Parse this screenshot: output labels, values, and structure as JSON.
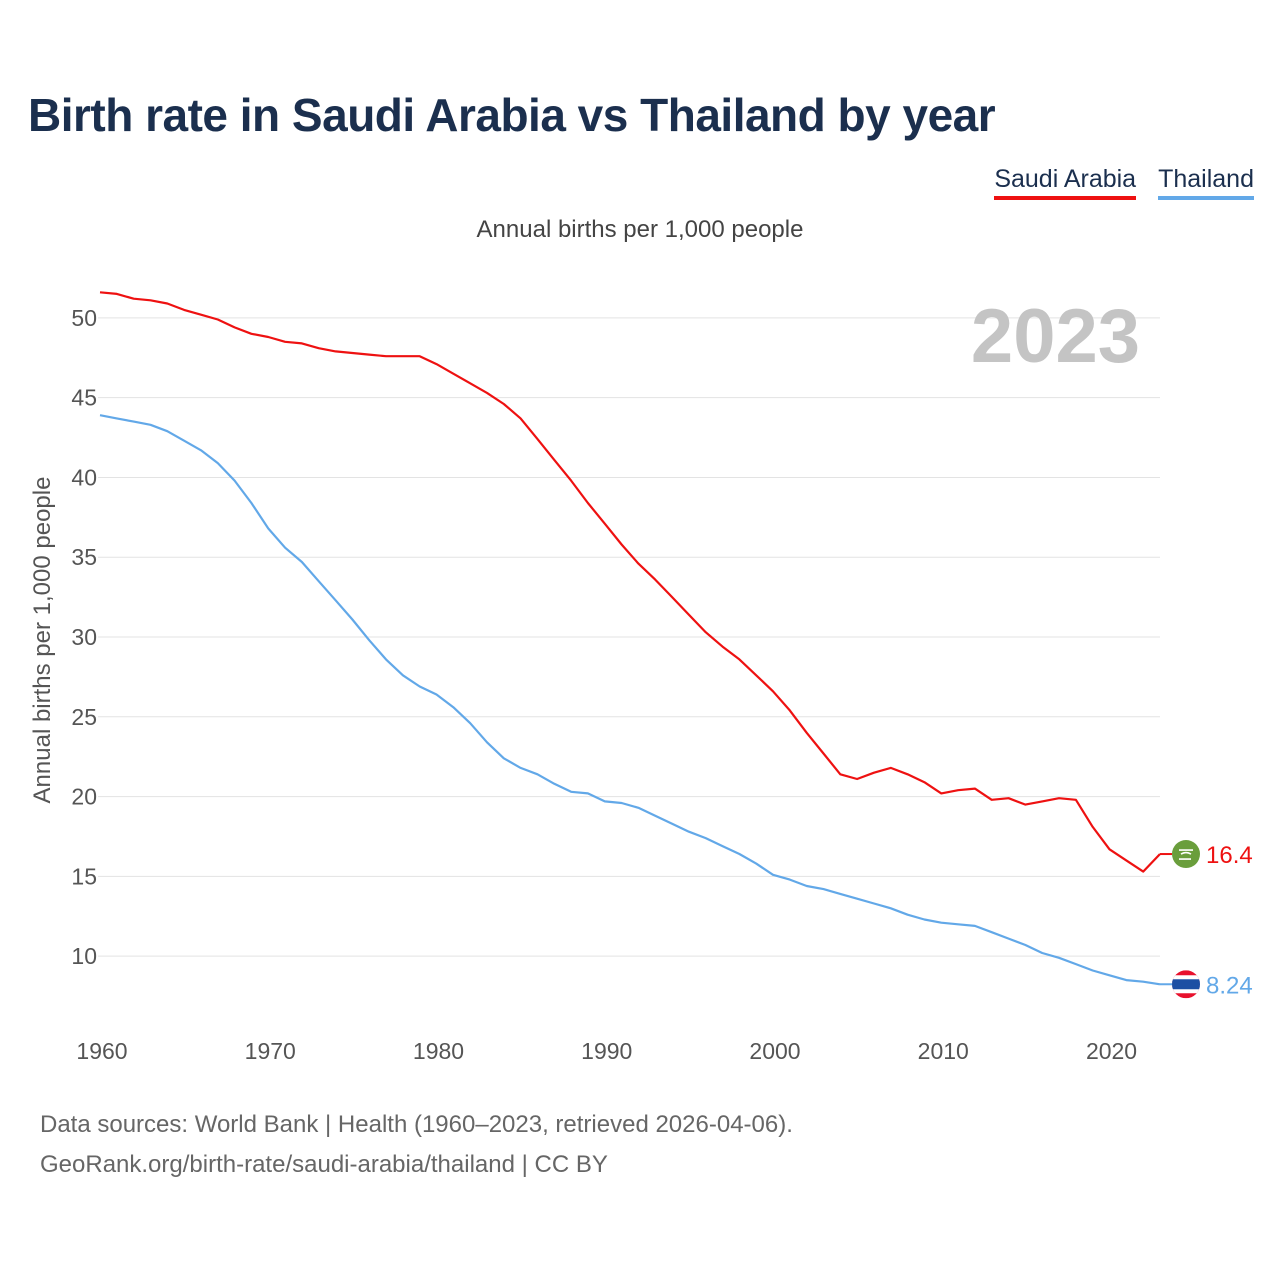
{
  "title": "Birth rate in Saudi Arabia vs Thailand by year",
  "subtitle": "Annual births per 1,000 people",
  "legend": [
    {
      "label": "Saudi Arabia",
      "color": "#ee1111"
    },
    {
      "label": "Thailand",
      "color": "#62a8e8"
    }
  ],
  "footer": {
    "line1": "Data sources: World Bank | Health (1960–2023, retrieved 2026-04-06).",
    "line2": "GeoRank.org/birth-rate/saudi-arabia/thailand | CC BY"
  },
  "chart_data": {
    "type": "line",
    "year_label": "2023",
    "ylabel": "Annual births per 1,000 people",
    "xlim": [
      1960,
      2023
    ],
    "ylim": [
      6,
      53
    ],
    "x_ticks": [
      1960,
      1970,
      1980,
      1990,
      2000,
      2010,
      2020
    ],
    "y_ticks": [
      10,
      15,
      20,
      25,
      30,
      35,
      40,
      45,
      50
    ],
    "grid": true,
    "x": [
      1960,
      1961,
      1962,
      1963,
      1964,
      1965,
      1966,
      1967,
      1968,
      1969,
      1970,
      1971,
      1972,
      1973,
      1974,
      1975,
      1976,
      1977,
      1978,
      1979,
      1980,
      1981,
      1982,
      1983,
      1984,
      1985,
      1986,
      1987,
      1988,
      1989,
      1990,
      1991,
      1992,
      1993,
      1994,
      1995,
      1996,
      1997,
      1998,
      1999,
      2000,
      2001,
      2002,
      2003,
      2004,
      2005,
      2006,
      2007,
      2008,
      2009,
      2010,
      2011,
      2012,
      2013,
      2014,
      2015,
      2016,
      2017,
      2018,
      2019,
      2020,
      2021,
      2022,
      2023
    ],
    "series": [
      {
        "name": "Saudi Arabia",
        "color": "#ee1111",
        "end_label": "16.4",
        "values": [
          51.6,
          51.5,
          51.2,
          51.1,
          50.9,
          50.5,
          50.2,
          49.9,
          49.4,
          49.0,
          48.8,
          48.5,
          48.4,
          48.1,
          47.9,
          47.8,
          47.7,
          47.6,
          47.6,
          47.6,
          47.1,
          46.5,
          45.9,
          45.3,
          44.6,
          43.7,
          42.4,
          41.1,
          39.8,
          38.4,
          37.1,
          35.8,
          34.6,
          33.6,
          32.5,
          31.4,
          30.3,
          29.4,
          28.6,
          27.6,
          26.6,
          25.4,
          24.0,
          22.7,
          21.4,
          21.1,
          21.5,
          21.8,
          21.4,
          20.9,
          20.2,
          20.4,
          20.5,
          19.8,
          19.9,
          19.5,
          19.7,
          19.9,
          19.8,
          18.1,
          16.7,
          16.0,
          15.3,
          16.4
        ]
      },
      {
        "name": "Thailand",
        "color": "#62a8e8",
        "end_label": "8.24",
        "values": [
          43.9,
          43.7,
          43.5,
          43.3,
          42.9,
          42.3,
          41.7,
          40.9,
          39.8,
          38.4,
          36.8,
          35.6,
          34.7,
          33.5,
          32.3,
          31.1,
          29.8,
          28.6,
          27.6,
          26.9,
          26.4,
          25.6,
          24.6,
          23.4,
          22.4,
          21.8,
          21.4,
          20.8,
          20.3,
          20.2,
          19.7,
          19.6,
          19.3,
          18.8,
          18.3,
          17.8,
          17.4,
          16.9,
          16.4,
          15.8,
          15.1,
          14.8,
          14.4,
          14.2,
          13.9,
          13.6,
          13.3,
          13.0,
          12.6,
          12.3,
          12.1,
          12.0,
          11.9,
          11.5,
          11.1,
          10.7,
          10.2,
          9.9,
          9.5,
          9.1,
          8.8,
          8.5,
          8.4,
          8.24
        ]
      }
    ]
  }
}
